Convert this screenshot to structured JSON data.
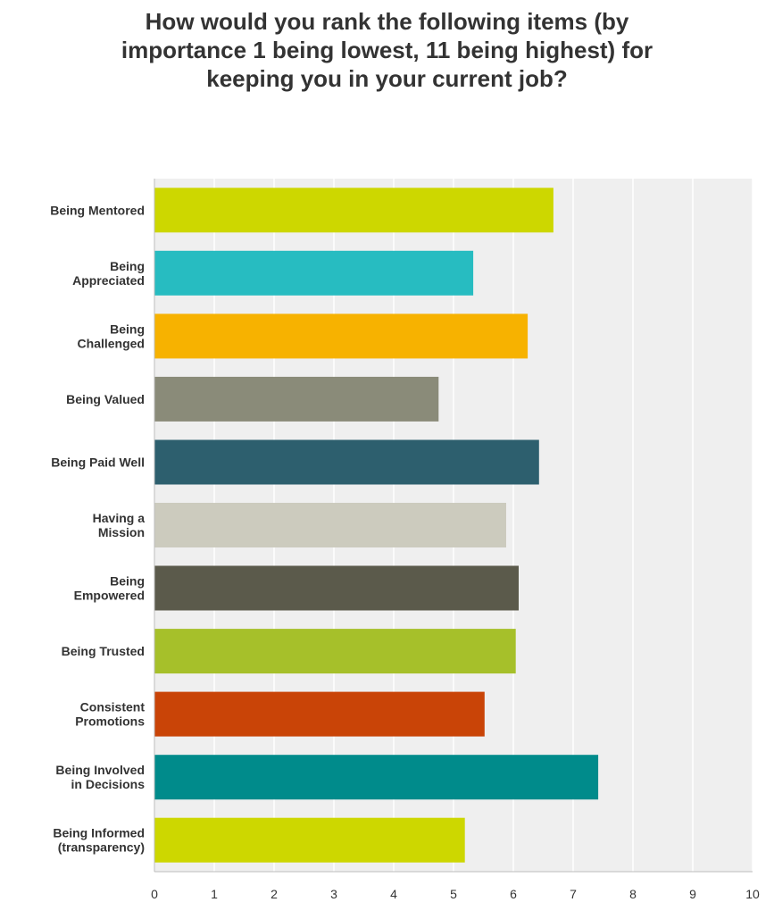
{
  "chart_data": {
    "type": "bar",
    "orientation": "horizontal",
    "title": "How would you rank the following items (by importance 1 being lowest, 11 being highest) for keeping you in your current job?",
    "xlabel": "",
    "ylabel": "",
    "xlim": [
      0,
      10
    ],
    "xticks": [
      "0",
      "1",
      "2",
      "3",
      "4",
      "5",
      "6",
      "7",
      "8",
      "9",
      "10"
    ],
    "grid": true,
    "legend": "none",
    "categories": [
      [
        "Being Mentored"
      ],
      [
        "Being",
        "Appreciated"
      ],
      [
        "Being",
        "Challenged"
      ],
      [
        "Being Valued"
      ],
      [
        "Being Paid Well"
      ],
      [
        "Having a",
        "Mission"
      ],
      [
        "Being",
        "Empowered"
      ],
      [
        "Being Trusted"
      ],
      [
        "Consistent",
        "Promotions"
      ],
      [
        "Being Involved",
        "in Decisions"
      ],
      [
        "Being Informed",
        "(transparency)"
      ]
    ],
    "values": [
      6.67,
      5.33,
      6.24,
      4.75,
      6.43,
      5.88,
      6.09,
      6.04,
      5.52,
      7.42,
      5.19
    ],
    "colors": [
      "#cdd700",
      "#27bcc1",
      "#f7b200",
      "#8a8b79",
      "#2d5f6e",
      "#cccbbe",
      "#5b5a4b",
      "#a6c02a",
      "#c94407",
      "#008b8b",
      "#cdd700"
    ]
  }
}
